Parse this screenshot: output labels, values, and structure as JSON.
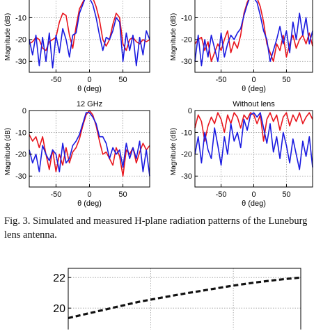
{
  "colors": {
    "simulated": "#e8141c",
    "measured": "#1a1ae0",
    "grid": "#9a9a9a",
    "frame": "#000000"
  },
  "caption": {
    "text": "Fig. 3. Simulated and measured H-plane radiation patterns of the Luneburg lens antenna."
  },
  "chart_data": [
    {
      "type": "line",
      "title": "",
      "xlabel": "θ (deg)",
      "ylabel": "Magnitude (dB)",
      "xlim": [
        -90,
        90
      ],
      "ylim": [
        -35,
        0
      ],
      "xticks": [
        -50,
        0,
        50
      ],
      "yticks": [
        -10,
        -20,
        -30
      ],
      "ytick_labels": [
        "-10",
        "-20",
        "-30"
      ],
      "xtick_labels": [
        "-50",
        "0",
        "50"
      ],
      "grid": true,
      "series": [
        {
          "color": "red",
          "x": [
            -90,
            -85,
            -80,
            -75,
            -70,
            -65,
            -60,
            -55,
            -50,
            -45,
            -40,
            -35,
            -30,
            -25,
            -20,
            -15,
            -10,
            -5,
            0,
            5,
            10,
            15,
            20,
            25,
            30,
            35,
            40,
            45,
            50,
            55,
            60,
            65,
            70,
            75,
            80,
            85,
            90
          ],
          "y": [
            -22,
            -21,
            -19,
            -20,
            -24,
            -25,
            -21,
            -20,
            -19,
            -12,
            -8,
            -9,
            -18,
            -24,
            -14,
            -6,
            -3,
            0,
            0,
            -1,
            -5,
            -11,
            -20,
            -23,
            -20,
            -13,
            -8,
            -10,
            -22,
            -25,
            -20,
            -19,
            -21,
            -22,
            -20,
            -21,
            -20
          ]
        },
        {
          "color": "blue",
          "x": [
            -90,
            -85,
            -80,
            -75,
            -70,
            -65,
            -60,
            -55,
            -50,
            -45,
            -40,
            -35,
            -30,
            -25,
            -20,
            -15,
            -10,
            -5,
            0,
            5,
            10,
            15,
            20,
            25,
            30,
            35,
            40,
            45,
            50,
            55,
            60,
            65,
            70,
            75,
            80,
            85,
            90
          ],
          "y": [
            -20,
            -27,
            -18,
            -32,
            -19,
            -30,
            -17,
            -33,
            -18,
            -26,
            -15,
            -20,
            -28,
            -18,
            -17,
            -8,
            -4,
            0,
            -1,
            -4,
            -10,
            -18,
            -25,
            -19,
            -20,
            -16,
            -10,
            -12,
            -30,
            -17,
            -25,
            -18,
            -32,
            -19,
            -27,
            -16,
            -20
          ]
        }
      ]
    },
    {
      "type": "line",
      "title": "",
      "xlabel": "θ (deg)",
      "ylabel": "Magnitude (dB)",
      "xlim": [
        -90,
        90
      ],
      "ylim": [
        -35,
        0
      ],
      "xticks": [
        -50,
        0,
        50
      ],
      "yticks": [
        -10,
        -20,
        -30
      ],
      "ytick_labels": [
        "-10",
        "-20",
        "-30"
      ],
      "xtick_labels": [
        "-50",
        "0",
        "50"
      ],
      "grid": true,
      "series": [
        {
          "color": "red",
          "x": [
            -90,
            -85,
            -80,
            -75,
            -70,
            -65,
            -60,
            -55,
            -50,
            -45,
            -40,
            -35,
            -30,
            -25,
            -20,
            -15,
            -10,
            -5,
            0,
            5,
            10,
            15,
            20,
            25,
            30,
            35,
            40,
            45,
            50,
            55,
            60,
            65,
            70,
            75,
            80,
            85,
            90
          ],
          "y": [
            -22,
            -20,
            -19,
            -25,
            -21,
            -30,
            -26,
            -22,
            -25,
            -20,
            -16,
            -26,
            -21,
            -24,
            -18,
            -8,
            -3,
            0,
            0,
            -1,
            -5,
            -12,
            -22,
            -26,
            -30,
            -22,
            -25,
            -18,
            -28,
            -22,
            -18,
            -24,
            -20,
            -18,
            -22,
            -17,
            -23
          ]
        },
        {
          "color": "blue",
          "x": [
            -90,
            -85,
            -80,
            -75,
            -70,
            -65,
            -60,
            -55,
            -50,
            -45,
            -40,
            -35,
            -30,
            -25,
            -20,
            -15,
            -10,
            -5,
            0,
            5,
            10,
            15,
            20,
            25,
            30,
            35,
            40,
            45,
            50,
            55,
            60,
            65,
            70,
            75,
            80,
            85,
            90
          ],
          "y": [
            -30,
            -18,
            -32,
            -20,
            -28,
            -18,
            -24,
            -30,
            -17,
            -28,
            -22,
            -18,
            -20,
            -17,
            -15,
            -9,
            -4,
            0,
            -1,
            -3,
            -9,
            -16,
            -20,
            -30,
            -25,
            -20,
            -14,
            -22,
            -16,
            -26,
            -12,
            -20,
            -8,
            -18,
            -10,
            -22,
            -16
          ]
        }
      ]
    },
    {
      "type": "line",
      "title": "12 GHz",
      "xlabel": "θ (deg)",
      "ylabel": "Magnitude (dB)",
      "xlim": [
        -90,
        90
      ],
      "ylim": [
        -35,
        0
      ],
      "xticks": [
        -50,
        0,
        50
      ],
      "yticks": [
        0,
        -10,
        -20,
        -30
      ],
      "ytick_labels": [
        "0",
        "-10",
        "-20",
        "-30"
      ],
      "xtick_labels": [
        "-50",
        "0",
        "50"
      ],
      "grid": true,
      "series": [
        {
          "color": "red",
          "x": [
            -90,
            -85,
            -80,
            -75,
            -70,
            -65,
            -60,
            -55,
            -50,
            -45,
            -40,
            -35,
            -30,
            -25,
            -20,
            -15,
            -10,
            -5,
            0,
            5,
            10,
            15,
            20,
            25,
            30,
            35,
            40,
            45,
            50,
            55,
            60,
            65,
            70,
            75,
            80,
            85,
            90
          ],
          "y": [
            -11,
            -14,
            -12,
            -17,
            -12,
            -20,
            -27,
            -18,
            -28,
            -20,
            -25,
            -17,
            -24,
            -19,
            -17,
            -13,
            -7,
            -2,
            0,
            -2,
            -7,
            -14,
            -20,
            -19,
            -22,
            -25,
            -17,
            -21,
            -30,
            -18,
            -20,
            -17,
            -24,
            -19,
            -15,
            -18,
            -16
          ]
        },
        {
          "color": "blue",
          "x": [
            -90,
            -85,
            -80,
            -75,
            -70,
            -65,
            -60,
            -55,
            -50,
            -45,
            -40,
            -35,
            -30,
            -25,
            -20,
            -15,
            -10,
            -5,
            0,
            5,
            10,
            15,
            20,
            25,
            30,
            35,
            40,
            45,
            50,
            55,
            60,
            65,
            70,
            75,
            80,
            85,
            90
          ],
          "y": [
            -18,
            -24,
            -20,
            -28,
            -16,
            -20,
            -23,
            -18,
            -20,
            -28,
            -15,
            -24,
            -22,
            -16,
            -14,
            -11,
            -6,
            -1,
            -1,
            -3,
            -6,
            -12,
            -12,
            -15,
            -22,
            -17,
            -20,
            -18,
            -26,
            -15,
            -22,
            -17,
            -22,
            -14,
            -28,
            -18,
            -30
          ]
        }
      ]
    },
    {
      "type": "line",
      "title": "Without lens",
      "xlabel": "θ (deg)",
      "ylabel": "Magnitude (dB)",
      "xlim": [
        -90,
        90
      ],
      "ylim": [
        -35,
        0
      ],
      "xticks": [
        -50,
        0,
        50
      ],
      "yticks": [
        0,
        -10,
        -20,
        -30
      ],
      "ytick_labels": [
        "0",
        "-10",
        "-20",
        "-30"
      ],
      "xtick_labels": [
        "-50",
        "0",
        "50"
      ],
      "grid": true,
      "series": [
        {
          "color": "red",
          "x": [
            -90,
            -85,
            -80,
            -75,
            -70,
            -65,
            -60,
            -55,
            -50,
            -45,
            -40,
            -35,
            -30,
            -25,
            -20,
            -15,
            -10,
            -5,
            0,
            5,
            10,
            15,
            20,
            25,
            30,
            35,
            40,
            45,
            50,
            55,
            60,
            65,
            70,
            75,
            80,
            85,
            90
          ],
          "y": [
            -8,
            -2,
            -5,
            -14,
            -7,
            -3,
            -6,
            -1,
            -4,
            -10,
            -2,
            -6,
            -1,
            -3,
            -8,
            -2,
            -4,
            -1,
            -2,
            -6,
            -2,
            -14,
            -4,
            -1,
            -5,
            -2,
            -9,
            -3,
            -1,
            -7,
            -2,
            -5,
            -1,
            -6,
            -3,
            -1,
            -4
          ]
        },
        {
          "color": "blue",
          "x": [
            -90,
            -85,
            -80,
            -75,
            -70,
            -65,
            -60,
            -55,
            -50,
            -45,
            -40,
            -35,
            -30,
            -25,
            -20,
            -15,
            -10,
            -5,
            0,
            5,
            10,
            15,
            20,
            25,
            30,
            35,
            40,
            45,
            50,
            55,
            60,
            65,
            70,
            75,
            80,
            85,
            90
          ],
          "y": [
            -20,
            -12,
            -24,
            -10,
            -18,
            -22,
            -8,
            -16,
            -25,
            -12,
            -20,
            -6,
            -14,
            -10,
            -17,
            -4,
            -9,
            -2,
            -1,
            -3,
            -1,
            -8,
            -15,
            -6,
            -19,
            -12,
            -22,
            -10,
            -16,
            -24,
            -13,
            -20,
            -27,
            -14,
            -21,
            -12,
            -26
          ]
        }
      ]
    },
    {
      "type": "line",
      "title": "",
      "xlabel": "",
      "ylabel": "",
      "xlim": [
        0,
        1
      ],
      "ylim": [
        17.6,
        22.6
      ],
      "yticks": [
        20,
        22
      ],
      "ytick_labels": [
        "20",
        "22"
      ],
      "xticks": [
        0.355,
        0.71
      ],
      "xtick_labels": [
        "",
        ""
      ],
      "grid": true,
      "series": [
        {
          "color": "black",
          "dashed": true,
          "x": [
            0.0,
            0.1,
            0.2,
            0.3,
            0.4,
            0.5,
            0.6,
            0.7,
            0.8,
            0.9,
            1.0
          ],
          "y": [
            19.35,
            19.7,
            20.05,
            20.4,
            20.68,
            20.95,
            21.2,
            21.45,
            21.67,
            21.85,
            22.0
          ]
        }
      ]
    }
  ]
}
